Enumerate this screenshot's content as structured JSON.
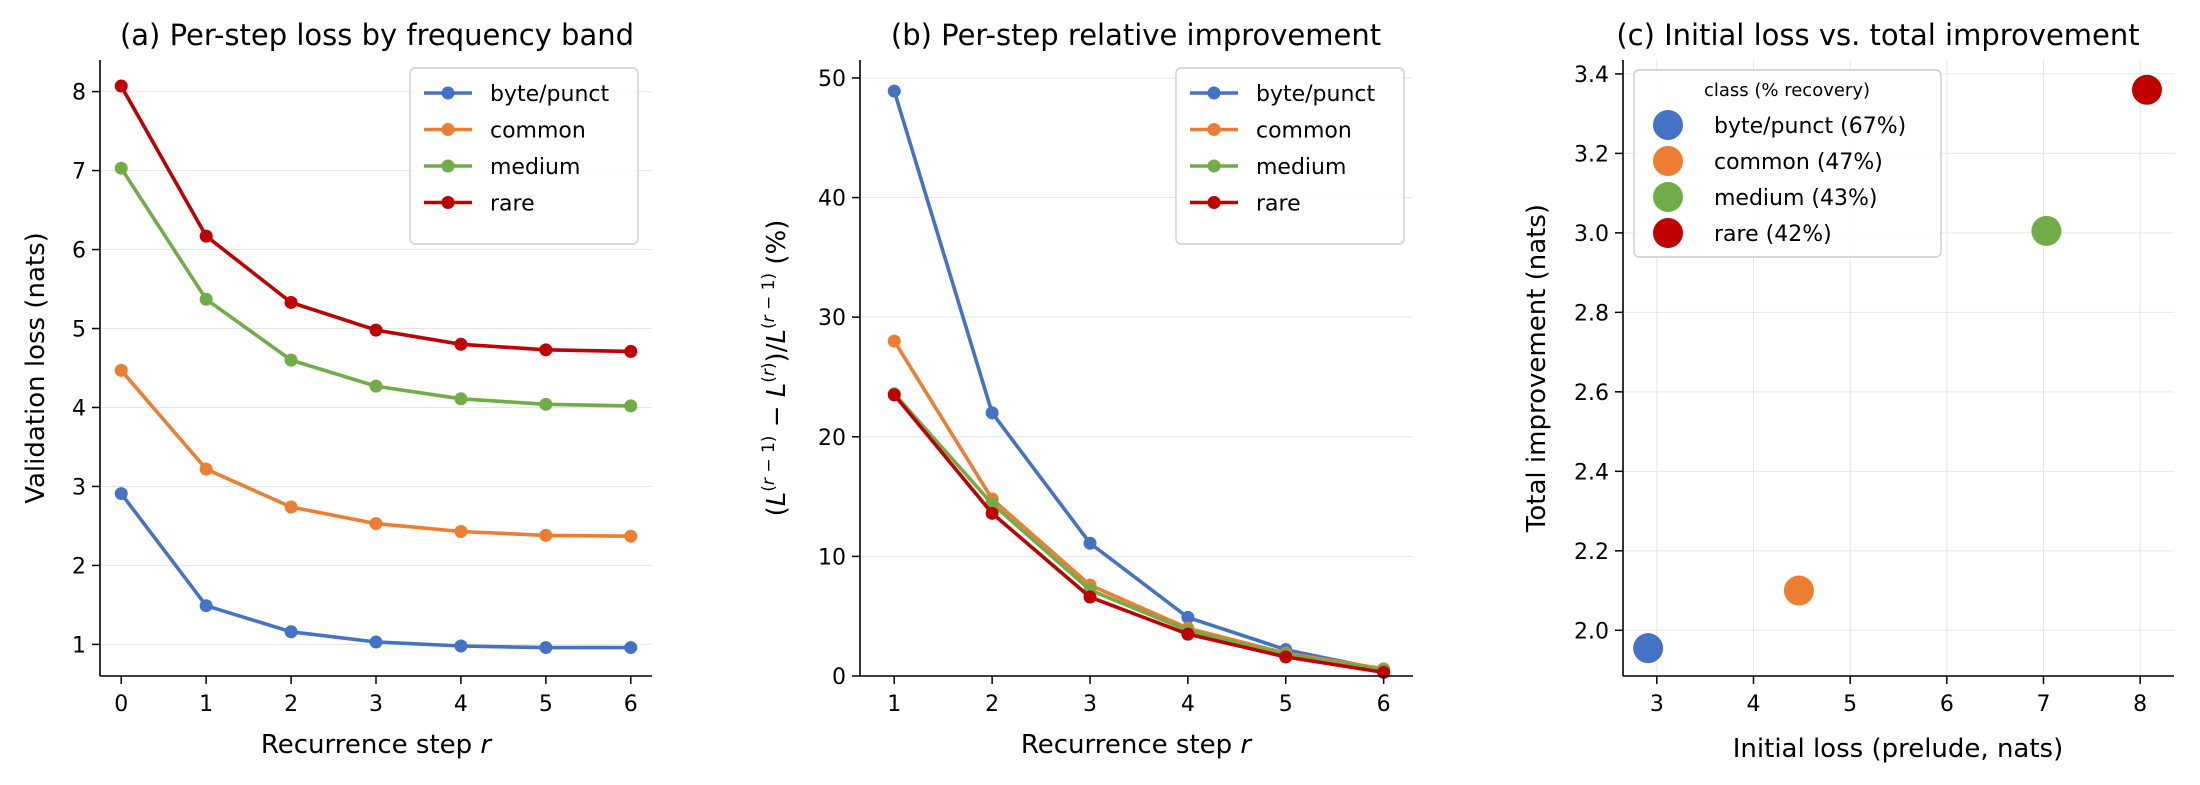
{
  "chart_data": [
    {
      "id": "a",
      "type": "line",
      "title": "(a) Per-step loss by frequency band",
      "xlabel": "Recurrence step r",
      "ylabel": "Validation loss (nats)",
      "xlim": [
        -0.25,
        6.25
      ],
      "ylim": [
        0.6,
        8.4
      ],
      "xticks": [
        0,
        1,
        2,
        3,
        4,
        5,
        6
      ],
      "yticks": [
        1,
        2,
        3,
        4,
        5,
        6,
        7,
        8
      ],
      "grid": "y",
      "legend": "top-right",
      "series": [
        {
          "name": "byte/punct",
          "color": "#4472c4",
          "x": [
            0,
            1,
            2,
            3,
            4,
            5,
            6
          ],
          "y": [
            2.91,
            1.49,
            1.16,
            1.03,
            0.98,
            0.96,
            0.96
          ]
        },
        {
          "name": "common",
          "color": "#ed7d31",
          "x": [
            0,
            1,
            2,
            3,
            4,
            5,
            6
          ],
          "y": [
            4.47,
            3.22,
            2.74,
            2.53,
            2.43,
            2.38,
            2.37
          ]
        },
        {
          "name": "medium",
          "color": "#70ad47",
          "x": [
            0,
            1,
            2,
            3,
            4,
            5,
            6
          ],
          "y": [
            7.03,
            5.37,
            4.6,
            4.27,
            4.11,
            4.04,
            4.02
          ]
        },
        {
          "name": "rare",
          "color": "#c00000",
          "x": [
            0,
            1,
            2,
            3,
            4,
            5,
            6
          ],
          "y": [
            8.07,
            6.17,
            5.33,
            4.98,
            4.8,
            4.73,
            4.71
          ]
        }
      ]
    },
    {
      "id": "b",
      "type": "line",
      "title": "(b) Per-step relative improvement",
      "xlabel": "Recurrence step r",
      "ylabel": "(L(r−1) − L(r))/L(r−1) (%)",
      "xlim": [
        0.65,
        6.3
      ],
      "ylim": [
        0,
        51.5
      ],
      "xticks": [
        1,
        2,
        3,
        4,
        5,
        6
      ],
      "yticks": [
        0,
        10,
        20,
        30,
        40,
        50
      ],
      "grid": "y",
      "legend": "top-right",
      "series": [
        {
          "name": "byte/punct",
          "color": "#4472c4",
          "x": [
            1,
            2,
            3,
            4,
            5,
            6
          ],
          "y": [
            48.9,
            22.0,
            11.1,
            4.9,
            2.2,
            0.5
          ]
        },
        {
          "name": "common",
          "color": "#ed7d31",
          "x": [
            1,
            2,
            3,
            4,
            5,
            6
          ],
          "y": [
            28.0,
            14.8,
            7.6,
            4.0,
            1.9,
            0.6
          ]
        },
        {
          "name": "medium",
          "color": "#70ad47",
          "x": [
            1,
            2,
            3,
            4,
            5,
            6
          ],
          "y": [
            23.6,
            14.4,
            7.2,
            3.8,
            1.8,
            0.5
          ]
        },
        {
          "name": "rare",
          "color": "#c00000",
          "x": [
            1,
            2,
            3,
            4,
            5,
            6
          ],
          "y": [
            23.5,
            13.6,
            6.6,
            3.5,
            1.6,
            0.3
          ]
        }
      ]
    },
    {
      "id": "c",
      "type": "scatter",
      "title": "(c) Initial loss vs. total improvement",
      "xlabel": "Initial loss (prelude, nats)",
      "ylabel": "Total improvement (nats)",
      "xlim": [
        2.65,
        8.35
      ],
      "ylim": [
        1.885,
        3.435
      ],
      "xticks": [
        3,
        4,
        5,
        6,
        7,
        8
      ],
      "yticks": [
        2.0,
        2.2,
        2.4,
        2.6,
        2.8,
        3.0,
        3.2,
        3.4
      ],
      "ytick_labels": [
        "2.0",
        "2.2",
        "2.4",
        "2.6",
        "2.8",
        "3.0",
        "3.2",
        "3.4"
      ],
      "grid": "both",
      "legend": "top-left",
      "legend_title": "class (% recovery)",
      "points": [
        {
          "name": "byte/punct (67%)",
          "color": "#4472c4",
          "x": 2.91,
          "y": 1.955
        },
        {
          "name": "common (47%)",
          "color": "#ed7d31",
          "x": 4.47,
          "y": 2.1
        },
        {
          "name": "medium (43%)",
          "color": "#70ad47",
          "x": 7.03,
          "y": 3.005
        },
        {
          "name": "rare (42%)",
          "color": "#c00000",
          "x": 8.07,
          "y": 3.36
        }
      ]
    }
  ]
}
